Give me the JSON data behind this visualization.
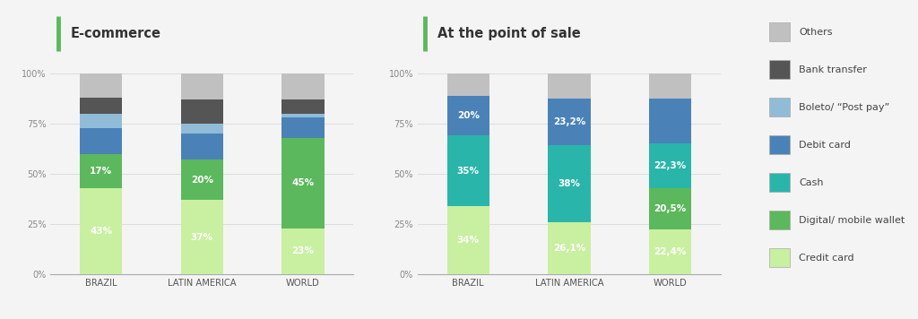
{
  "ecommerce": {
    "title": "E-commerce",
    "categories": [
      "BRAZIL",
      "LATIN AMERICA",
      "WORLD"
    ],
    "series": {
      "credit_card": [
        43,
        37,
        23
      ],
      "digital_wallet": [
        17,
        20,
        45
      ],
      "debit_card": [
        13,
        13,
        10
      ],
      "boleto": [
        7,
        5,
        2
      ],
      "bank_transfer": [
        8,
        12,
        7
      ],
      "others": [
        12,
        13,
        13
      ]
    },
    "labels": {
      "credit_card": [
        "43%",
        "37%",
        "23%"
      ],
      "digital_wallet": [
        "17%",
        "20%",
        "45%"
      ],
      "debit_card": [
        "",
        "",
        ""
      ],
      "boleto": [
        "",
        "",
        ""
      ],
      "bank_transfer": [
        "",
        "",
        ""
      ],
      "others": [
        "",
        "",
        ""
      ]
    }
  },
  "pos": {
    "title": "At the point of sale",
    "categories": [
      "BRAZIL",
      "LATIN AMERICA",
      "WORLD"
    ],
    "series": {
      "credit_card": [
        34,
        26.1,
        22.4
      ],
      "digital_wallet": [
        0,
        0,
        20.5
      ],
      "cash": [
        35,
        38,
        22.3
      ],
      "debit_card": [
        20,
        23.2,
        22.3
      ],
      "bank_transfer": [
        0,
        0,
        0
      ],
      "others": [
        11,
        12.7,
        12.5
      ]
    },
    "labels": {
      "credit_card": [
        "34%",
        "26,1%",
        "22,4%"
      ],
      "digital_wallet": [
        "",
        "",
        "20,5%"
      ],
      "cash": [
        "35%",
        "38%",
        "22,3%"
      ],
      "debit_card": [
        "20%",
        "23,2%",
        ""
      ],
      "bank_transfer": [
        "",
        "",
        ""
      ],
      "others": [
        "",
        "",
        ""
      ]
    }
  },
  "colors": {
    "credit_card": "#c8f0a0",
    "digital_wallet": "#5cb85c",
    "cash": "#2ab5aa",
    "debit_card": "#4a82b8",
    "boleto": "#90bcd8",
    "bank_transfer": "#555555",
    "others": "#c0c0c0"
  },
  "legend": [
    {
      "key": "others",
      "label": "Others"
    },
    {
      "key": "bank_transfer",
      "label": "Bank transfer"
    },
    {
      "key": "boleto",
      "label": "Boleto/ “Post pay”"
    },
    {
      "key": "debit_card",
      "label": "Debit card"
    },
    {
      "key": "cash",
      "label": "Cash"
    },
    {
      "key": "digital_wallet",
      "label": "Digital/ mobile wallet"
    },
    {
      "key": "credit_card",
      "label": "Credit card"
    }
  ],
  "bg_color": "#f4f4f4",
  "accent_color": "#5cb85c"
}
